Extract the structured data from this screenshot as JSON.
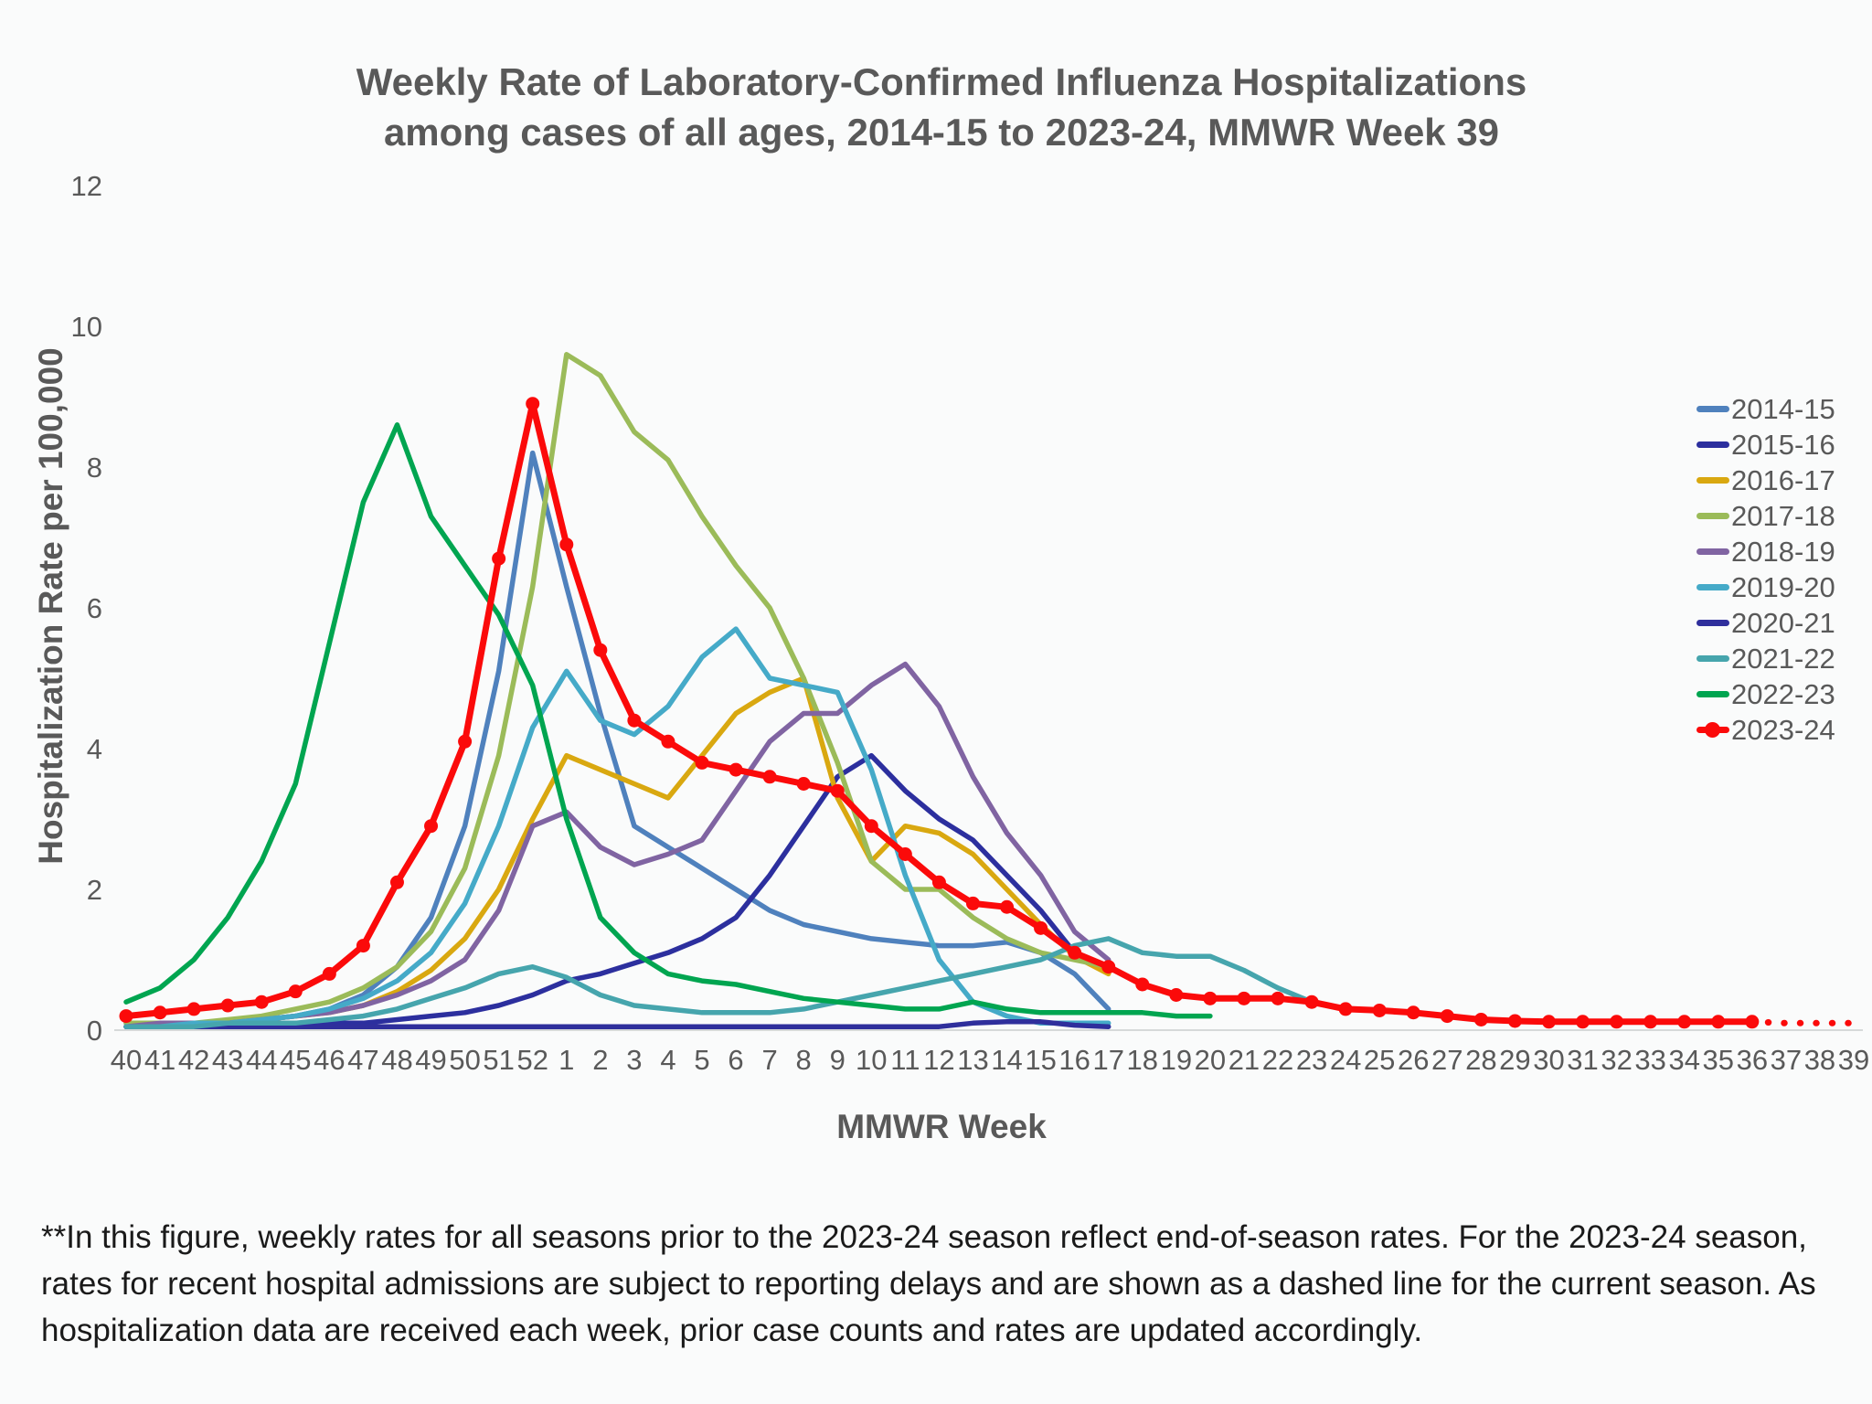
{
  "chart": {
    "title_line1": "Weekly Rate of Laboratory-Confirmed Influenza Hospitalizations",
    "title_line2": "among cases of all ages, 2014-15 to 2023-24, MMWR Week 39",
    "ylabel": "Hospitalization Rate per 100,000",
    "xlabel": "MMWR Week"
  },
  "footnote": "**In this figure, weekly rates for all seasons prior to the 2023-24 season reflect end-of-season rates. For the 2023-24 season, rates for recent hospital admissions are subject to reporting delays and are shown as a dashed line for the current season. As hospitalization data are received each week, prior case counts and rates are updated accordingly.",
  "chart_data": {
    "type": "line",
    "title": "Weekly Rate of Laboratory-Confirmed Influenza Hospitalizations among cases of all ages, 2014-15 to 2023-24, MMWR Week 39",
    "xlabel": "MMWR Week",
    "ylabel": "Hospitalization Rate per 100,000",
    "ylim": [
      0,
      12
    ],
    "yticks": [
      0,
      2,
      4,
      6,
      8,
      10,
      12
    ],
    "grid": false,
    "legend_position": "right",
    "categories": [
      "40",
      "41",
      "42",
      "43",
      "44",
      "45",
      "46",
      "47",
      "48",
      "49",
      "50",
      "51",
      "52",
      "1",
      "2",
      "3",
      "4",
      "5",
      "6",
      "7",
      "8",
      "9",
      "10",
      "11",
      "12",
      "13",
      "14",
      "15",
      "16",
      "17",
      "18",
      "19",
      "20",
      "21",
      "22",
      "23",
      "24",
      "25",
      "26",
      "27",
      "28",
      "29",
      "30",
      "31",
      "32",
      "33",
      "34",
      "35",
      "36",
      "37",
      "38",
      "39"
    ],
    "series": [
      {
        "name": "2014-15",
        "color": "#4f81bd",
        "values": [
          0.1,
          0.1,
          0.1,
          0.1,
          0.15,
          0.2,
          0.3,
          0.5,
          0.9,
          1.6,
          2.9,
          5.1,
          8.2,
          6.3,
          4.5,
          2.9,
          2.6,
          2.3,
          2.0,
          1.7,
          1.5,
          1.4,
          1.3,
          1.25,
          1.2,
          1.2,
          1.25,
          1.1,
          0.8,
          0.3,
          null,
          null,
          null,
          null,
          null,
          null,
          null,
          null,
          null,
          null,
          null,
          null,
          null,
          null,
          null,
          null,
          null,
          null,
          null,
          null,
          null,
          null
        ]
      },
      {
        "name": "2015-16",
        "color": "#2c2f9e",
        "values": [
          0.05,
          0.05,
          0.05,
          0.05,
          0.05,
          0.1,
          0.1,
          0.1,
          0.15,
          0.2,
          0.25,
          0.35,
          0.5,
          0.7,
          0.8,
          0.95,
          1.1,
          1.3,
          1.6,
          2.2,
          2.9,
          3.6,
          3.9,
          3.4,
          3.0,
          2.7,
          2.2,
          1.7,
          1.1,
          0.9,
          null,
          null,
          null,
          null,
          null,
          null,
          null,
          null,
          null,
          null,
          null,
          null,
          null,
          null,
          null,
          null,
          null,
          null,
          null,
          null,
          null,
          null
        ]
      },
      {
        "name": "2016-17",
        "color": "#d9a810",
        "values": [
          0.05,
          0.05,
          0.1,
          0.1,
          0.15,
          0.2,
          0.25,
          0.35,
          0.55,
          0.85,
          1.3,
          2.0,
          3.0,
          3.9,
          3.7,
          3.5,
          3.3,
          3.9,
          4.5,
          4.8,
          5.0,
          3.3,
          2.4,
          2.9,
          2.8,
          2.5,
          2.0,
          1.5,
          1.05,
          0.8,
          null,
          null,
          null,
          null,
          null,
          null,
          null,
          null,
          null,
          null,
          null,
          null,
          null,
          null,
          null,
          null,
          null,
          null,
          null,
          null,
          null,
          null
        ]
      },
      {
        "name": "2017-18",
        "color": "#9bbb59",
        "values": [
          0.1,
          0.1,
          0.1,
          0.15,
          0.2,
          0.3,
          0.4,
          0.6,
          0.9,
          1.4,
          2.3,
          3.9,
          6.3,
          9.6,
          9.3,
          8.5,
          8.1,
          7.3,
          6.6,
          6.0,
          5.0,
          3.8,
          2.4,
          2.0,
          2.0,
          1.6,
          1.3,
          1.1,
          1.0,
          0.9,
          null,
          null,
          null,
          null,
          null,
          null,
          null,
          null,
          null,
          null,
          null,
          null,
          null,
          null,
          null,
          null,
          null,
          null,
          null,
          null,
          null,
          null
        ]
      },
      {
        "name": "2018-19",
        "color": "#8064a2",
        "values": [
          0.05,
          0.1,
          0.1,
          0.1,
          0.15,
          0.2,
          0.25,
          0.35,
          0.5,
          0.7,
          1.0,
          1.7,
          2.9,
          3.1,
          2.6,
          2.35,
          2.5,
          2.7,
          3.4,
          4.1,
          4.5,
          4.5,
          4.9,
          5.2,
          4.6,
          3.6,
          2.8,
          2.2,
          1.4,
          1.0,
          null,
          null,
          null,
          null,
          null,
          null,
          null,
          null,
          null,
          null,
          null,
          null,
          null,
          null,
          null,
          null,
          null,
          null,
          null,
          null,
          null,
          null
        ]
      },
      {
        "name": "2019-20",
        "color": "#45aac8",
        "values": [
          0.05,
          0.05,
          0.1,
          0.1,
          0.15,
          0.2,
          0.3,
          0.45,
          0.7,
          1.1,
          1.8,
          2.9,
          4.3,
          5.1,
          4.4,
          4.2,
          4.6,
          5.3,
          5.7,
          5.0,
          4.9,
          4.8,
          3.7,
          2.2,
          1.0,
          0.4,
          0.2,
          0.1,
          0.1,
          0.1,
          null,
          null,
          null,
          null,
          null,
          null,
          null,
          null,
          null,
          null,
          null,
          null,
          null,
          null,
          null,
          null,
          null,
          null,
          null,
          null,
          null,
          null
        ]
      },
      {
        "name": "2020-21",
        "color": "#2f2f9c",
        "values": [
          0.05,
          0.05,
          0.05,
          0.05,
          0.05,
          0.05,
          0.05,
          0.05,
          0.05,
          0.05,
          0.05,
          0.05,
          0.05,
          0.05,
          0.05,
          0.05,
          0.05,
          0.05,
          0.05,
          0.05,
          0.05,
          0.05,
          0.05,
          0.05,
          0.05,
          0.1,
          0.12,
          0.12,
          0.07,
          0.05,
          null,
          null,
          null,
          null,
          null,
          null,
          null,
          null,
          null,
          null,
          null,
          null,
          null,
          null,
          null,
          null,
          null,
          null,
          null,
          null,
          null,
          null
        ]
      },
      {
        "name": "2021-22",
        "color": "#46a5ad",
        "values": [
          0.05,
          0.05,
          0.05,
          0.1,
          0.1,
          0.1,
          0.15,
          0.2,
          0.3,
          0.45,
          0.6,
          0.8,
          0.9,
          0.75,
          0.5,
          0.35,
          0.3,
          0.25,
          0.25,
          0.25,
          0.3,
          0.4,
          0.5,
          0.6,
          0.7,
          0.8,
          0.9,
          1.0,
          1.2,
          1.3,
          1.1,
          1.05,
          1.05,
          0.85,
          0.6,
          0.4,
          null,
          null,
          null,
          null,
          null,
          null,
          null,
          null,
          null,
          null,
          null,
          null,
          null,
          null,
          null,
          null
        ]
      },
      {
        "name": "2022-23",
        "color": "#00a550",
        "values": [
          0.4,
          0.6,
          1.0,
          1.6,
          2.4,
          3.5,
          5.5,
          7.5,
          8.6,
          7.3,
          6.6,
          5.9,
          4.9,
          3.0,
          1.6,
          1.1,
          0.8,
          0.7,
          0.65,
          0.55,
          0.45,
          0.4,
          0.35,
          0.3,
          0.3,
          0.4,
          0.3,
          0.25,
          0.25,
          0.25,
          0.25,
          0.2,
          0.2,
          null,
          null,
          null,
          null,
          null,
          null,
          null,
          null,
          null,
          null,
          null,
          null,
          null,
          null,
          null,
          null,
          null,
          null,
          null
        ]
      },
      {
        "name": "2023-24",
        "color": "#fb0a0a",
        "markers": true,
        "dashed_from_index": 48,
        "values": [
          0.2,
          0.25,
          0.3,
          0.35,
          0.4,
          0.55,
          0.8,
          1.2,
          2.1,
          2.9,
          4.1,
          6.7,
          8.9,
          6.9,
          5.4,
          4.4,
          4.1,
          3.8,
          3.7,
          3.6,
          3.5,
          3.4,
          2.9,
          2.5,
          2.1,
          1.8,
          1.75,
          1.45,
          1.1,
          0.9,
          0.65,
          0.5,
          0.45,
          0.45,
          0.45,
          0.4,
          0.3,
          0.28,
          0.25,
          0.2,
          0.15,
          0.13,
          0.12,
          0.12,
          0.12,
          0.12,
          0.12,
          0.12,
          0.12,
          0.1,
          0.1,
          0.1
        ]
      }
    ]
  }
}
